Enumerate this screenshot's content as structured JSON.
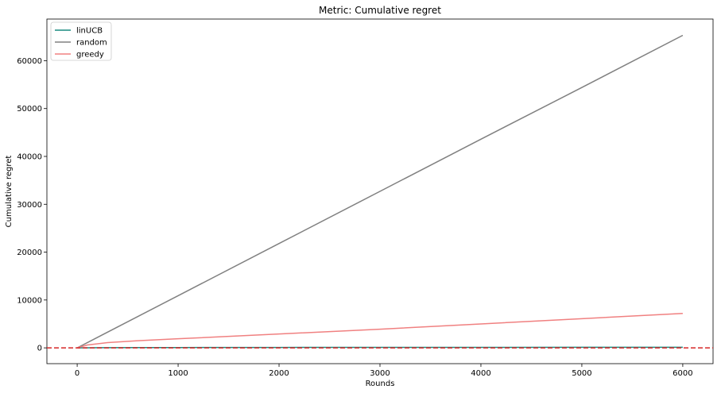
{
  "chart_data": {
    "type": "line",
    "title": "Metric: Cumulative regret",
    "xlabel": "Rounds",
    "ylabel": "Cumulative regret",
    "xlim": [
      -300,
      6300
    ],
    "ylim": [
      -3300,
      68700
    ],
    "xticks": [
      0,
      1000,
      2000,
      3000,
      4000,
      5000,
      6000
    ],
    "yticks": [
      0,
      10000,
      20000,
      30000,
      40000,
      50000,
      60000
    ],
    "grid": false,
    "legend_position": "top-left",
    "series": [
      {
        "name": "linUCB",
        "color": "#1a8c80",
        "x": [
          0,
          300,
          600,
          1000,
          2000,
          3000,
          4000,
          5000,
          6000
        ],
        "y": [
          0,
          40,
          60,
          70,
          90,
          100,
          110,
          115,
          120
        ]
      },
      {
        "name": "random",
        "color": "#808080",
        "x": [
          0,
          1000,
          2000,
          3000,
          4000,
          5000,
          6000
        ],
        "y": [
          0,
          10900,
          21800,
          32700,
          43600,
          54400,
          65300
        ]
      },
      {
        "name": "greedy",
        "color": "#f08080",
        "x": [
          0,
          100,
          300,
          600,
          1000,
          2000,
          3000,
          4000,
          5000,
          6000
        ],
        "y": [
          0,
          600,
          1100,
          1500,
          1900,
          2900,
          3900,
          5000,
          6100,
          7200
        ]
      }
    ],
    "reference_line": {
      "y": 0,
      "color": "#d62728",
      "style": "dashed"
    }
  }
}
